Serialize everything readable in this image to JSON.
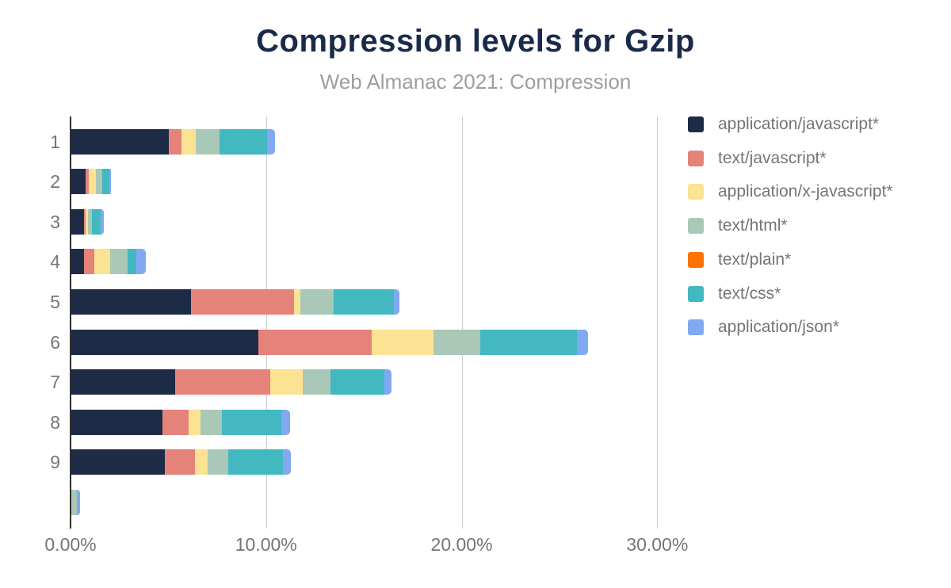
{
  "title": "Compression levels for Gzip",
  "subtitle": "Web Almanac 2021: Compression",
  "style_colors": {
    "title_navy": "#1a2b49",
    "subtitle_gray": "#9e9e9e",
    "axis_label_gray": "#757575",
    "gridline_gray": "#cccccc",
    "axis_line_dark": "#2f2f2f",
    "background": "#ffffff"
  },
  "chart_data": {
    "type": "bar",
    "orientation": "horizontal",
    "stacked": true,
    "title": "Compression levels for Gzip",
    "subtitle": "Web Almanac 2021: Compression",
    "xlabel": "",
    "ylabel": "",
    "grid": true,
    "legend_position": "right",
    "categories": [
      "1",
      "2",
      "3",
      "4",
      "5",
      "6",
      "7",
      "8",
      "9",
      ""
    ],
    "series": [
      {
        "name": "application/javascript*",
        "color": "#1e2b47",
        "values": [
          5.0,
          0.71,
          0.63,
          0.65,
          6.13,
          9.55,
          5.3,
          4.66,
          4.79,
          0
        ]
      },
      {
        "name": "text/javascript*",
        "color": "#e5837a",
        "values": [
          0.62,
          0.2,
          0.08,
          0.51,
          5.24,
          5.81,
          4.89,
          1.35,
          1.55,
          0
        ]
      },
      {
        "name": "application/x-javascript*",
        "color": "#fce293",
        "values": [
          0.73,
          0.34,
          0.15,
          0.81,
          0.34,
          3.17,
          1.66,
          0.58,
          0.65,
          0
        ]
      },
      {
        "name": "text/html*",
        "color": "#a9c8b7",
        "values": [
          1.21,
          0.34,
          0.21,
          0.9,
          1.69,
          2.39,
          1.42,
          1.12,
          1.04,
          0.3
        ]
      },
      {
        "name": "text/plain*",
        "color": "#ff7300",
        "values": [
          0,
          0,
          0,
          0,
          0,
          0,
          0,
          0,
          0,
          0
        ]
      },
      {
        "name": "text/css*",
        "color": "#43b8c1",
        "values": [
          2.47,
          0.36,
          0.44,
          0.45,
          3.1,
          4.94,
          2.72,
          3.02,
          2.78,
          0
        ]
      },
      {
        "name": "application/json*",
        "color": "#80a9f2",
        "values": [
          0.4,
          0.07,
          0.16,
          0.5,
          0.27,
          0.57,
          0.4,
          0.47,
          0.43,
          0.15
        ]
      }
    ],
    "x_axis": {
      "tick_labels": [
        "0.00%",
        "10.00%",
        "20.00%",
        "30.00%"
      ],
      "tick_values": [
        0,
        10,
        20,
        30
      ],
      "min": 0,
      "max": 43.4,
      "unit": "percent"
    }
  }
}
